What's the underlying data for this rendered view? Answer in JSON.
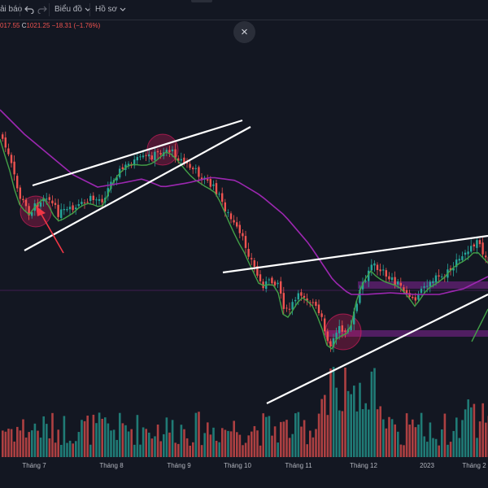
{
  "toolbar": {
    "alert_label": "ải báo",
    "chart_type_label": "Biểu đồ",
    "profile_label": "Hồ sơ"
  },
  "ohlc": {
    "low_partial": "017.55",
    "close_key": "C",
    "close_value": "1021.25",
    "change": "−18.31 (−1.76%)"
  },
  "close_button_glyph": "×",
  "x_axis": {
    "ticks": [
      "Tháng 7",
      "Tháng 8",
      "Tháng 9",
      "Tháng 10",
      "Tháng 11",
      "Tháng 12",
      "2023",
      "Tháng 2"
    ]
  },
  "colors": {
    "background": "#131722",
    "up": "#26a69a",
    "down": "#ef5350",
    "ma_fast": "#43a047",
    "ma_slow": "#9c27b0",
    "trendline": "#ffffff",
    "highlight": "#e91e63",
    "support_zone": "#9c27b0"
  },
  "chart_data": {
    "type": "candlestick",
    "x": [
      "Tháng 7",
      "Tháng 8",
      "Tháng 9",
      "Tháng 10",
      "Tháng 11",
      "Tháng 12",
      "2023",
      "Tháng 2"
    ],
    "last_close": 1021.25,
    "last_change": -18.31,
    "last_change_pct": -1.76,
    "series": [
      {
        "values": [
          1150,
          1200,
          1240,
          1100,
          960,
          1060,
          1050,
          1070
        ]
      },
      {
        "values": [
          1230,
          1180,
          1210,
          1170,
          1040,
          1000,
          1030,
          1060
        ]
      }
    ],
    "volume_panel": true,
    "grid": false
  }
}
